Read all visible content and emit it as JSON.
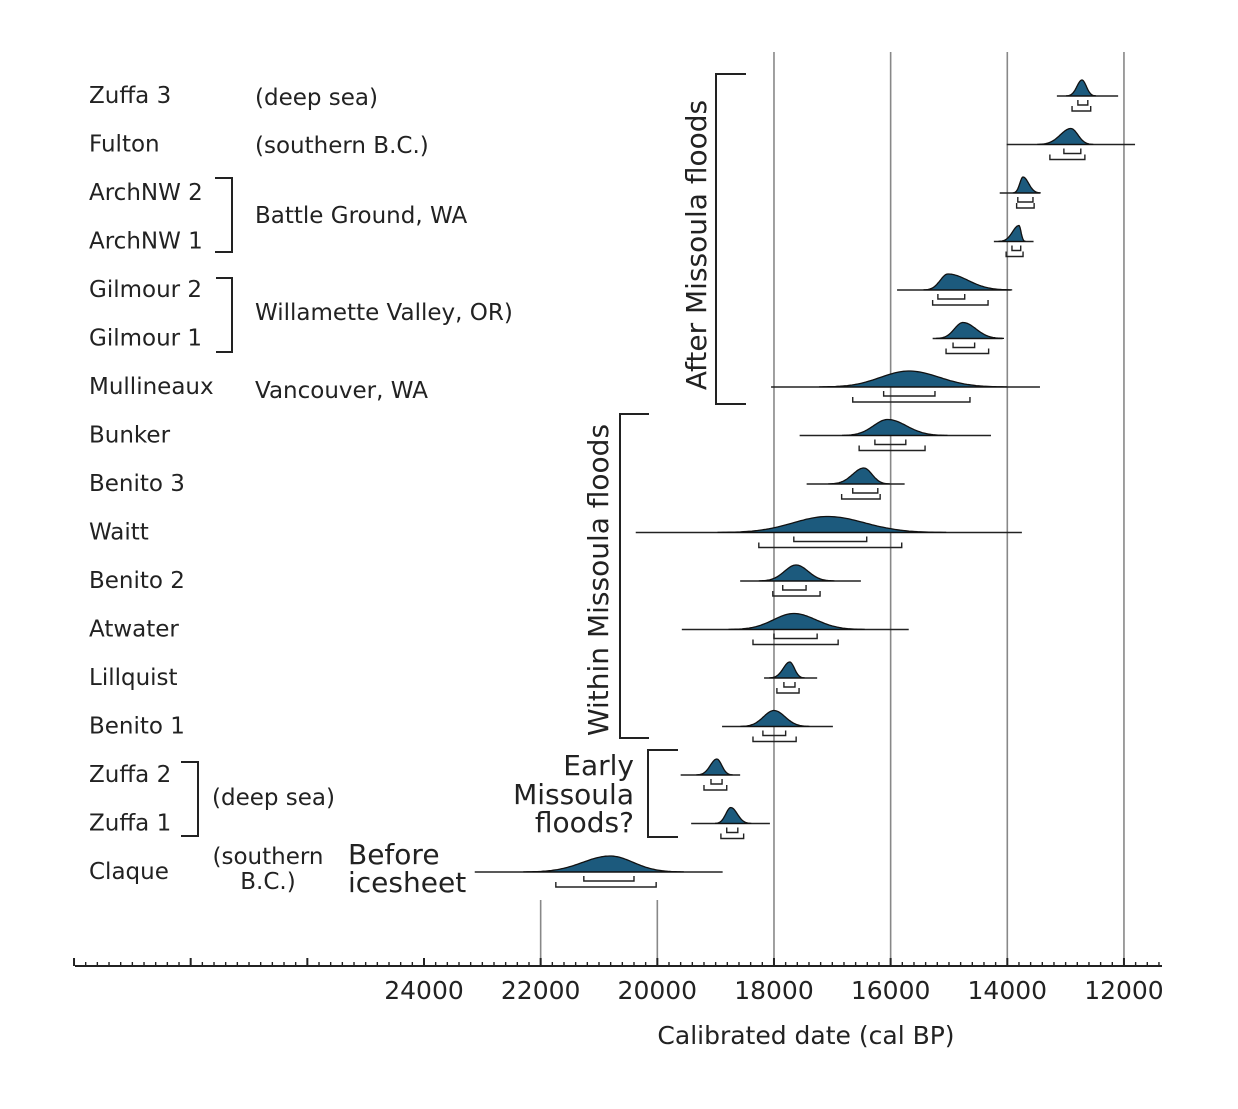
{
  "chart_data": {
    "type": "range-distribution",
    "xlabel": "Calibrated date (cal BP)",
    "x_reversed": true,
    "xlim": [
      30000,
      11400
    ],
    "x_ticks": [
      24000,
      22000,
      20000,
      18000,
      16000,
      14000,
      12000
    ],
    "x_tick_labels": [
      "24000",
      "22000",
      "20000",
      "18000",
      "16000",
      "14000",
      "12000"
    ],
    "minor_tick_step": 200,
    "major_tick_step": 2000,
    "reference_lines_full": [
      18000,
      16000,
      14000,
      12000
    ],
    "reference_lines_short": [
      22000,
      20000
    ],
    "fill_color": "#1c5a7d",
    "series": [
      {
        "name": "Zuffa 3",
        "range": [
          13150,
          12100
        ],
        "peak": 12720,
        "sigma1": [
          12790,
          12620
        ],
        "sigma2": [
          12890,
          12570
        ]
      },
      {
        "name": "Fulton",
        "range": [
          14010,
          11810
        ],
        "peak": 12910,
        "sigma1": [
          13030,
          12740
        ],
        "sigma2": [
          13270,
          12670
        ]
      },
      {
        "name": "ArchNW 2",
        "range": [
          14130,
          13440
        ],
        "peak": 13730,
        "sigma1": [
          13820,
          13560
        ],
        "sigma2": [
          13840,
          13540
        ]
      },
      {
        "name": "ArchNW 1",
        "range": [
          14230,
          13550
        ],
        "peak": 13800,
        "sigma1": [
          13920,
          13770
        ],
        "sigma2": [
          14020,
          13730
        ]
      },
      {
        "name": "Gilmour 2",
        "range": [
          15890,
          13940
        ],
        "peak": 15020,
        "sigma1": [
          15190,
          14730
        ],
        "sigma2": [
          15280,
          14330
        ]
      },
      {
        "name": "Gilmour 1",
        "range": [
          15280,
          14080
        ],
        "peak": 14760,
        "sigma1": [
          14930,
          14560
        ],
        "sigma2": [
          15050,
          14320
        ]
      },
      {
        "name": "Mullineaux",
        "range": [
          18050,
          13440
        ],
        "peak": 15690,
        "sigma1": [
          16120,
          15240
        ],
        "sigma2": [
          16650,
          14640
        ]
      },
      {
        "name": "Bunker",
        "range": [
          17560,
          14280
        ],
        "peak": 16050,
        "sigma1": [
          16270,
          15740
        ],
        "sigma2": [
          16540,
          15410
        ]
      },
      {
        "name": "Benito 3",
        "range": [
          17440,
          15760
        ],
        "peak": 16460,
        "sigma1": [
          16650,
          16220
        ],
        "sigma2": [
          16840,
          16180
        ]
      },
      {
        "name": "Waitt",
        "range": [
          20370,
          13750
        ],
        "peak": 17080,
        "sigma1": [
          17660,
          16410
        ],
        "sigma2": [
          18260,
          15810
        ]
      },
      {
        "name": "Benito 2",
        "range": [
          18580,
          16510
        ],
        "peak": 17620,
        "sigma1": [
          17850,
          17450
        ],
        "sigma2": [
          18020,
          17210
        ]
      },
      {
        "name": "Atwater",
        "range": [
          19580,
          15690
        ],
        "peak": 17660,
        "sigma1": [
          18000,
          17260
        ],
        "sigma2": [
          18360,
          16900
        ]
      },
      {
        "name": "Lillquist",
        "range": [
          18170,
          17260
        ],
        "peak": 17730,
        "sigma1": [
          17830,
          17640
        ],
        "sigma2": [
          17950,
          17570
        ]
      },
      {
        "name": "Benito 1",
        "range": [
          18890,
          16990
        ],
        "peak": 18000,
        "sigma1": [
          18190,
          17800
        ],
        "sigma2": [
          18360,
          17620
        ]
      },
      {
        "name": "Zuffa 2",
        "range": [
          19600,
          18580
        ],
        "peak": 18980,
        "sigma1": [
          19080,
          18890
        ],
        "sigma2": [
          19200,
          18810
        ]
      },
      {
        "name": "Zuffa 1",
        "range": [
          19420,
          18070
        ],
        "peak": 18740,
        "sigma1": [
          18810,
          18620
        ],
        "sigma2": [
          18910,
          18520
        ]
      },
      {
        "name": "Claque",
        "range": [
          23130,
          18880
        ],
        "peak": 20810,
        "sigma1": [
          21260,
          20400
        ],
        "sigma2": [
          21740,
          20020
        ]
      }
    ],
    "site_labels": [
      {
        "text": "(deep sea)",
        "rows": [
          "Zuffa 3"
        ]
      },
      {
        "text": "(southern B.C.)",
        "rows": [
          "Fulton"
        ]
      },
      {
        "text": "Battle Ground, WA",
        "rows": [
          "ArchNW 2",
          "ArchNW 1"
        ]
      },
      {
        "text": "Willamette Valley, OR)",
        "rows": [
          "Gilmour 2",
          "Gilmour 1"
        ]
      },
      {
        "text": "Vancouver, WA",
        "rows": [
          "Mullineaux"
        ]
      },
      {
        "text": "(deep sea)",
        "rows": [
          "Zuffa 2",
          "Zuffa 1"
        ]
      },
      {
        "text_lines": [
          "(southern",
          "B.C.)"
        ],
        "rows": [
          "Claque"
        ]
      }
    ],
    "group_labels": [
      {
        "text": "After Missoula floods",
        "rows": [
          "Zuffa 3",
          "Mullineaux"
        ]
      },
      {
        "text": "Within Missoula floods",
        "rows": [
          "Bunker",
          "Benito 1"
        ]
      },
      {
        "text_lines": [
          "Early",
          "Missoula",
          "floods?"
        ],
        "rows": [
          "Zuffa 2",
          "Zuffa 1"
        ]
      },
      {
        "text_lines": [
          "Before",
          "icesheet"
        ],
        "rows": [
          "Claque"
        ]
      }
    ]
  }
}
